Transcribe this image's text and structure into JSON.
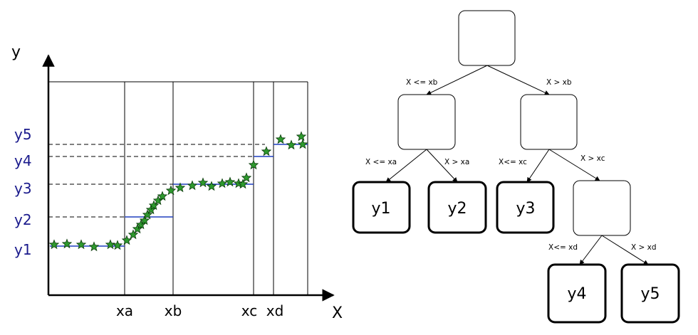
{
  "plot": {
    "x_axis_label": "X",
    "y_axis_label": "y",
    "x_ticks": [
      "xa",
      "xb",
      "xc",
      "xd"
    ],
    "y_ticks": [
      "y1",
      "y2",
      "y3",
      "y4",
      "y5"
    ]
  },
  "tree": {
    "edges": {
      "root_left": "X <= xb",
      "root_right": "X > xb",
      "a_left": "X <= xa",
      "a_right": "X > xa",
      "b_left": "X<= xc",
      "b_right": "X > xc",
      "c_left": "X<= xd",
      "c_right": "X > xd"
    },
    "leaves": [
      "y1",
      "y2",
      "y3",
      "y4",
      "y5"
    ]
  },
  "colors": {
    "step_line": "#1f3fbf",
    "star_fill": "#2e9a2e",
    "axis": "#000000",
    "tick_text": "#1a1a8c"
  }
}
